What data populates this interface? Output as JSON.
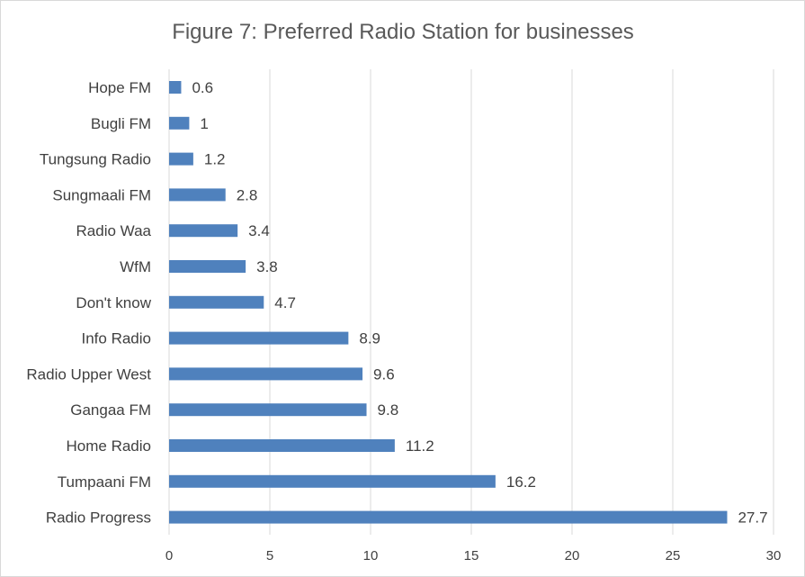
{
  "chart_data": {
    "type": "bar",
    "orientation": "horizontal",
    "title": "Figure 7: Preferred Radio Station for businesses",
    "categories": [
      "Hope FM",
      "Bugli FM",
      "Tungsung Radio",
      "Sungmaali FM",
      "Radio Waa",
      "WfM",
      "Don't know",
      "Info Radio",
      "Radio Upper West",
      "Gangaa FM",
      "Home Radio",
      "Tumpaani FM",
      "Radio Progress"
    ],
    "values": [
      0.6,
      1,
      1.2,
      2.8,
      3.4,
      3.8,
      4.7,
      8.9,
      9.6,
      9.8,
      11.2,
      16.2,
      27.7
    ],
    "data_labels": [
      "0.6",
      "1",
      "1.2",
      "2.8",
      "3.4",
      "3.8",
      "4.7",
      "8.9",
      "9.6",
      "9.8",
      "11.2",
      "16.2",
      "27.7"
    ],
    "xlim": [
      0,
      30
    ],
    "x_ticks": [
      "0",
      "5",
      "10",
      "15",
      "20",
      "25",
      "30"
    ],
    "xlabel": "",
    "ylabel": "",
    "grid": "vertical",
    "legend": "none",
    "colors": {
      "bar": "#4f81bd",
      "grid": "#d9d9d9",
      "text": "#404040",
      "title": "#595959"
    }
  }
}
